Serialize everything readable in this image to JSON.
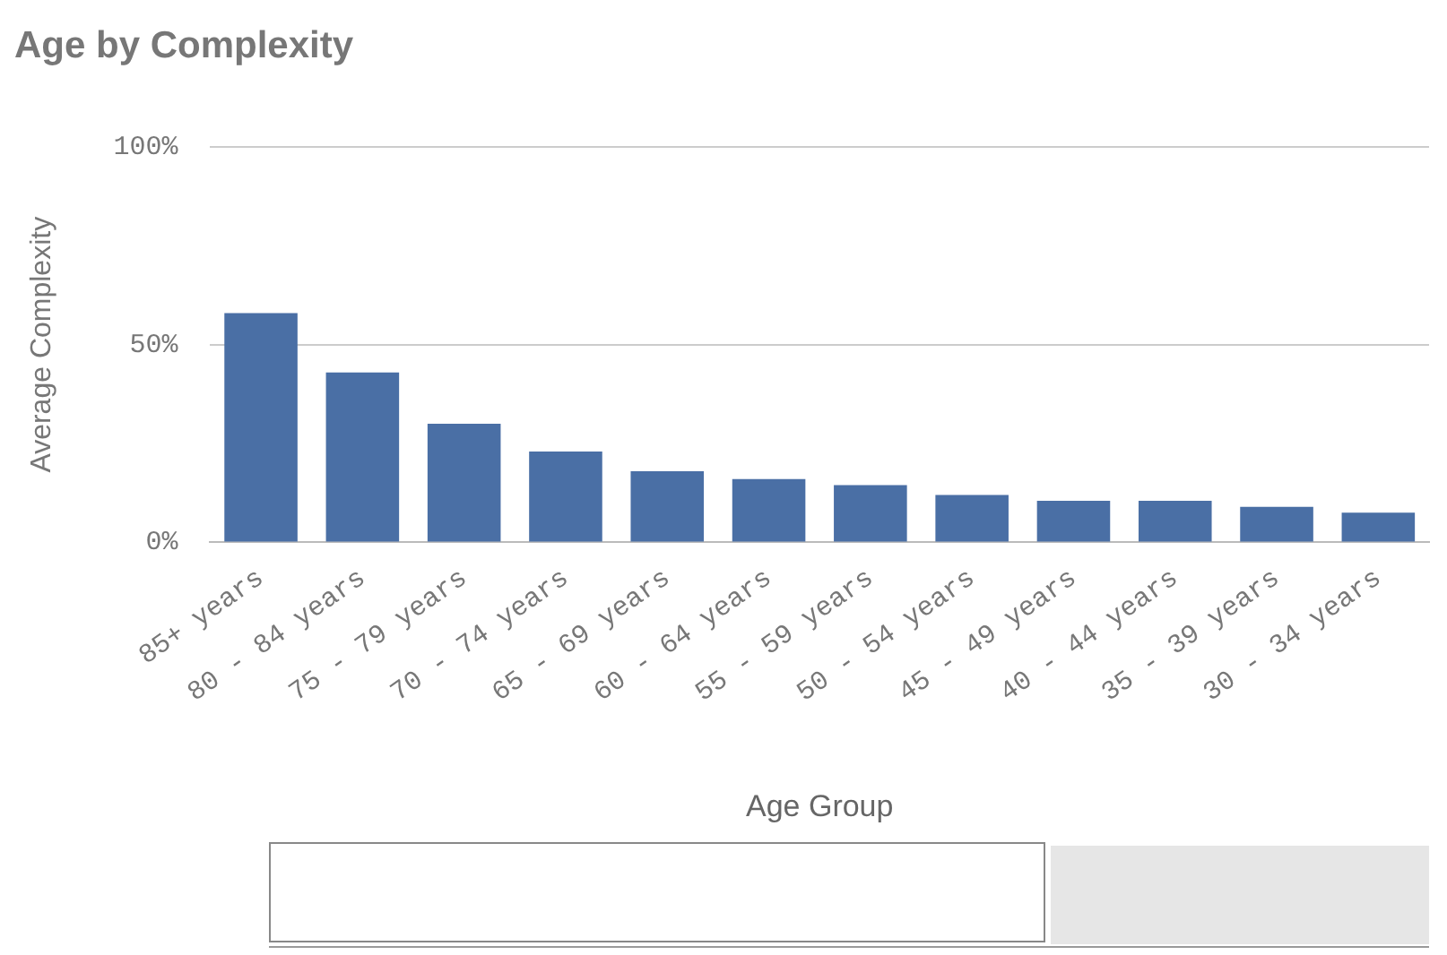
{
  "chart_data": {
    "type": "bar",
    "title": "Age by Complexity",
    "xlabel": "Age Group",
    "ylabel": "Average Complexity",
    "categories": [
      "85+ years",
      "80 - 84 years",
      "75 - 79 years",
      "70 - 74 years",
      "65 - 69 years",
      "60 - 64 years",
      "55 - 59 years",
      "50 - 54 years",
      "45 - 49 years",
      "40 - 44 years",
      "35 - 39 years",
      "30 - 34 years"
    ],
    "values": [
      58,
      43,
      30,
      23,
      18,
      16,
      14.5,
      12,
      10.5,
      10.5,
      9,
      7.5
    ],
    "color": "#4a6fa5",
    "ylim": [
      0,
      100
    ],
    "yticks": [
      {
        "value": 0,
        "label": "0%"
      },
      {
        "value": 50,
        "label": "50%"
      },
      {
        "value": 100,
        "label": "100%"
      }
    ],
    "grid": "y",
    "legend": false
  }
}
